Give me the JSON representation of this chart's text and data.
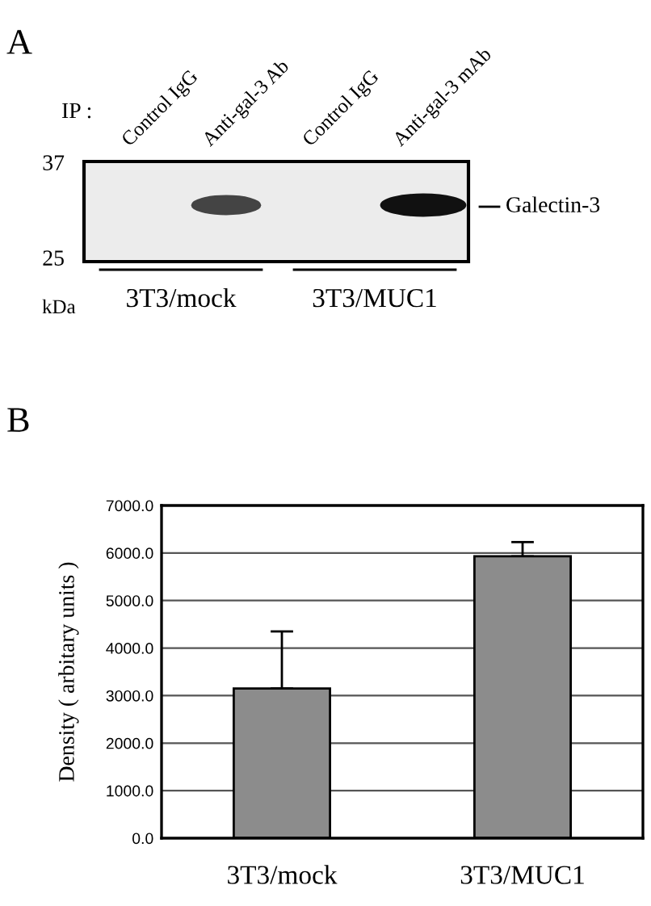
{
  "chart_data": [
    {
      "type": "other",
      "title": "A",
      "annotations": [
        "IP :",
        "Control IgG",
        "Anti-gal-3 Ab",
        "Control IgG",
        "Anti-gal-3 mAb",
        "37",
        "25",
        "kDa",
        "Galectin-3",
        "3T3/mock",
        "3T3/MUC1"
      ]
    },
    {
      "type": "bar",
      "title": "B",
      "ylabel": "Density ( arbitary units )",
      "categories": [
        "3T3/mock",
        "3T3/MUC1"
      ],
      "values": [
        3150,
        5930
      ],
      "errors": [
        [
          3150,
          4350
        ],
        [
          5930,
          6230
        ]
      ],
      "color": "#8c8c8c",
      "ylim": [
        0,
        7000
      ],
      "yticks": [
        {
          "value": 0,
          "label": "0.0"
        },
        {
          "value": 1000,
          "label": "1000.0"
        },
        {
          "value": 2000,
          "label": "2000.0"
        },
        {
          "value": 3000,
          "label": "3000.0"
        },
        {
          "value": 4000,
          "label": "4000.0"
        },
        {
          "value": 5000,
          "label": "5000.0"
        },
        {
          "value": 6000,
          "label": "6000.0"
        },
        {
          "value": 7000,
          "label": "7000.0"
        }
      ],
      "grid": "y",
      "legend": false
    }
  ]
}
